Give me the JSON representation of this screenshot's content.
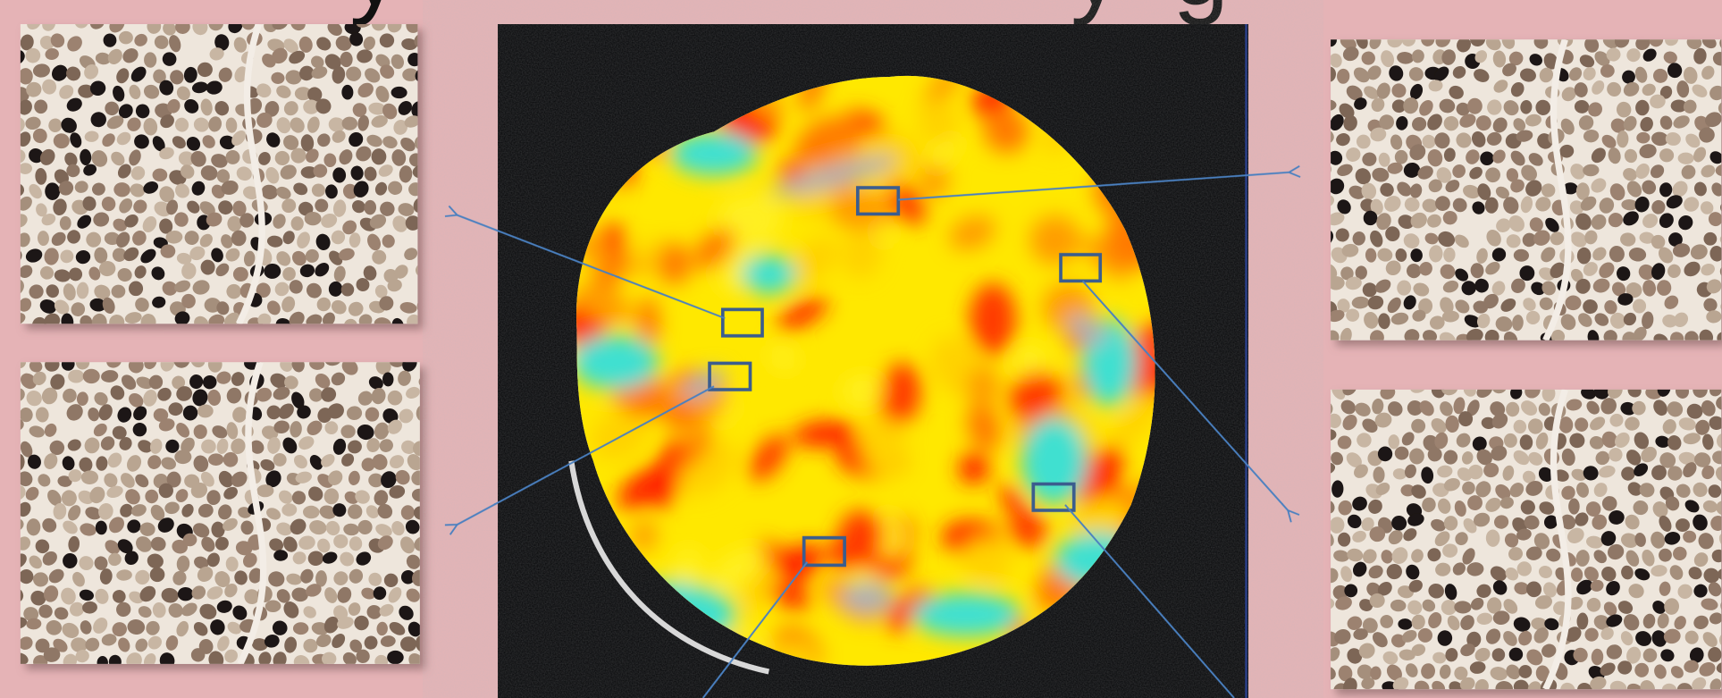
{
  "title_fragments": [
    "y",
    "y",
    "g"
  ]
}
